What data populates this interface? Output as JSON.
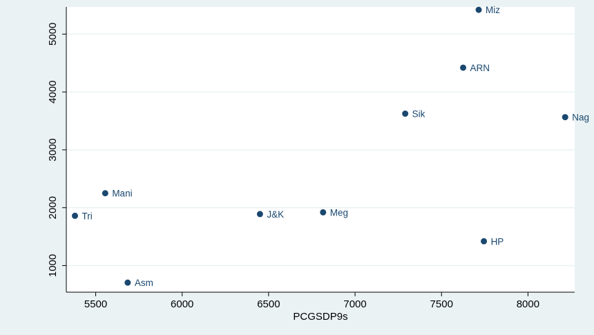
{
  "chart_data": {
    "type": "scatter",
    "title": "",
    "xlabel": "PCGSDP9s",
    "ylabel": "",
    "xlim": [
      5330,
      8270
    ],
    "ylim": [
      540,
      5470
    ],
    "xticks": [
      5500,
      6000,
      6500,
      7000,
      7500,
      8000
    ],
    "yticks": [
      1000,
      2000,
      3000,
      4000,
      5000
    ],
    "grid": true,
    "legend": "none",
    "colors": {
      "marker": "#1a476f",
      "plot_bg": "#ffffff",
      "outer_bg": "#eaf2f3",
      "grid": "#eaf2f3"
    },
    "points": [
      {
        "x": 5380,
        "y": 1860,
        "label": "Tri"
      },
      {
        "x": 5555,
        "y": 2250,
        "label": "Mani"
      },
      {
        "x": 5685,
        "y": 705,
        "label": "Asm"
      },
      {
        "x": 6450,
        "y": 1890,
        "label": "J&K"
      },
      {
        "x": 6815,
        "y": 1920,
        "label": "Meg"
      },
      {
        "x": 7290,
        "y": 3625,
        "label": "Sik"
      },
      {
        "x": 7625,
        "y": 4420,
        "label": "ARN"
      },
      {
        "x": 7715,
        "y": 5420,
        "label": "Miz"
      },
      {
        "x": 7745,
        "y": 1420,
        "label": "HP"
      },
      {
        "x": 8215,
        "y": 3565,
        "label": "Nag"
      }
    ]
  }
}
